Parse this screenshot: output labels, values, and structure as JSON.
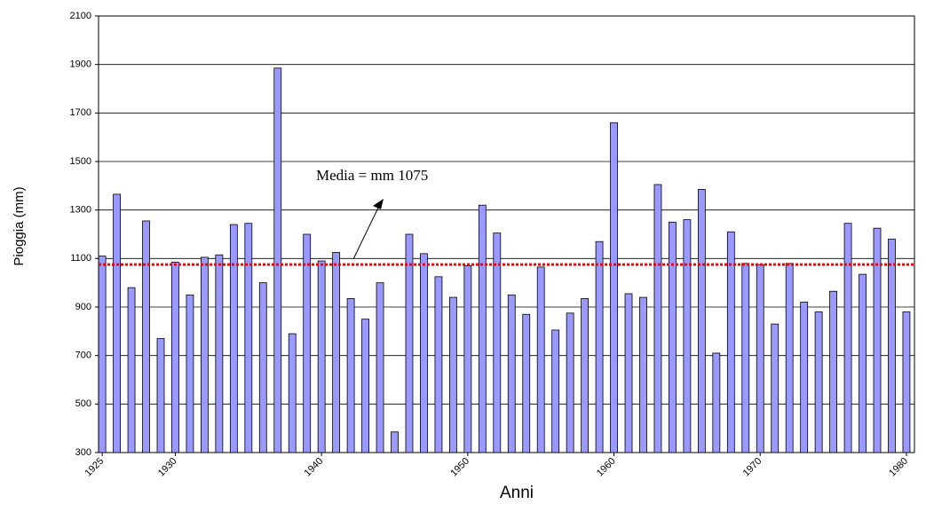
{
  "chart_data": {
    "type": "bar",
    "y_label": "Pioggia (mm)",
    "x_label": "Anni",
    "annotation": "Media = mm 1075",
    "mean": 1075,
    "mean_color": "#ff0000",
    "x": [
      1925,
      1926,
      1927,
      1928,
      1929,
      1930,
      1931,
      1932,
      1933,
      1934,
      1935,
      1936,
      1937,
      1938,
      1939,
      1940,
      1941,
      1942,
      1943,
      1944,
      1945,
      1946,
      1947,
      1948,
      1949,
      1950,
      1951,
      1952,
      1953,
      1954,
      1955,
      1956,
      1957,
      1958,
      1959,
      1960,
      1961,
      1962,
      1963,
      1964,
      1965,
      1966,
      1967,
      1968,
      1969,
      1970,
      1971,
      1972,
      1973,
      1974,
      1975,
      1976,
      1977,
      1978,
      1979,
      1980
    ],
    "values": [
      1110,
      1365,
      980,
      1255,
      770,
      1085,
      950,
      1105,
      1115,
      1240,
      1245,
      1000,
      1885,
      790,
      1200,
      1090,
      1125,
      935,
      850,
      1000,
      385,
      1200,
      1120,
      1025,
      940,
      1070,
      1320,
      1205,
      950,
      870,
      1065,
      805,
      875,
      935,
      1170,
      1660,
      955,
      940,
      1405,
      1250,
      1260,
      1385,
      710,
      1210,
      1080,
      1075,
      830,
      1080,
      920,
      880,
      965,
      1245,
      1035,
      1225,
      1180,
      880
    ],
    "color": "#9999ff",
    "xlim": [
      1924.75,
      1980.55
    ],
    "xticks": [
      1925,
      1930,
      1940,
      1950,
      1960,
      1970,
      1980
    ],
    "ylim": [
      300,
      2100
    ],
    "yticks": [
      300,
      500,
      700,
      900,
      1100,
      1300,
      1500,
      1700,
      1900,
      2100
    ],
    "grid": true
  }
}
